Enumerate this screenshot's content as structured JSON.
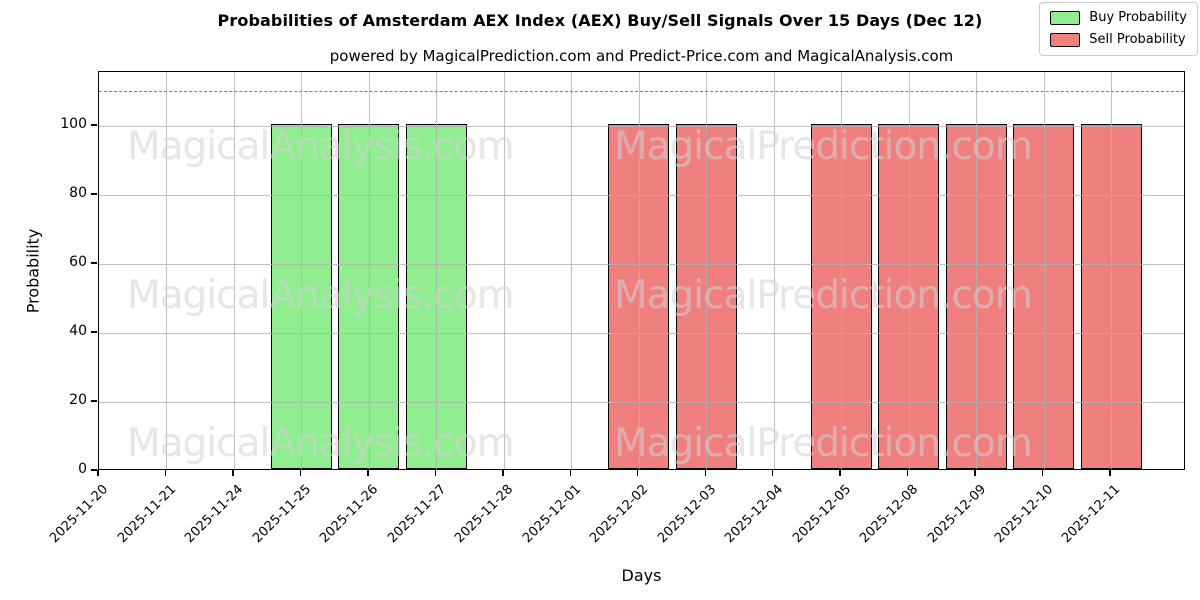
{
  "title": "Probabilities of Amsterdam AEX Index (AEX) Buy/Sell Signals Over 15 Days (Dec 12)",
  "subtitle": "powered by MagicalPrediction.com and Predict-Price.com and MagicalAnalysis.com",
  "chart_data": {
    "type": "bar",
    "title": "Probabilities of Amsterdam AEX Index (AEX) Buy/Sell Signals Over 15 Days (Dec 12)",
    "subtitle": "powered by MagicalPrediction.com and Predict-Price.com and MagicalAnalysis.com",
    "xlabel": "Days",
    "ylabel": "Probability",
    "categories": [
      "2025-11-20",
      "2025-11-21",
      "2025-11-24",
      "2025-11-25",
      "2025-11-26",
      "2025-11-27",
      "2025-11-28",
      "2025-12-01",
      "2025-12-02",
      "2025-12-03",
      "2025-12-04",
      "2025-12-05",
      "2025-12-08",
      "2025-12-09",
      "2025-12-10",
      "2025-12-11"
    ],
    "series": [
      {
        "name": "Buy Probability",
        "color": "#90ee90",
        "values": [
          0,
          0,
          0,
          100,
          100,
          100,
          0,
          0,
          0,
          0,
          0,
          0,
          0,
          0,
          0,
          0
        ]
      },
      {
        "name": "Sell Probability",
        "color": "#f08080",
        "values": [
          0,
          0,
          0,
          0,
          0,
          0,
          0,
          0,
          100,
          100,
          0,
          100,
          100,
          100,
          100,
          100
        ]
      }
    ],
    "yticks": [
      0,
      20,
      40,
      60,
      80,
      100
    ],
    "ylim": [
      0,
      115.6
    ],
    "threshold_line": {
      "y": 110,
      "style": "dashed",
      "color": "#7f7f7f"
    },
    "grid": true,
    "legend_position": "upper-right",
    "bar_edge_color": "#000000",
    "watermarks": [
      "MagicalAnalysis.com",
      "MagicalPrediction.com"
    ]
  }
}
